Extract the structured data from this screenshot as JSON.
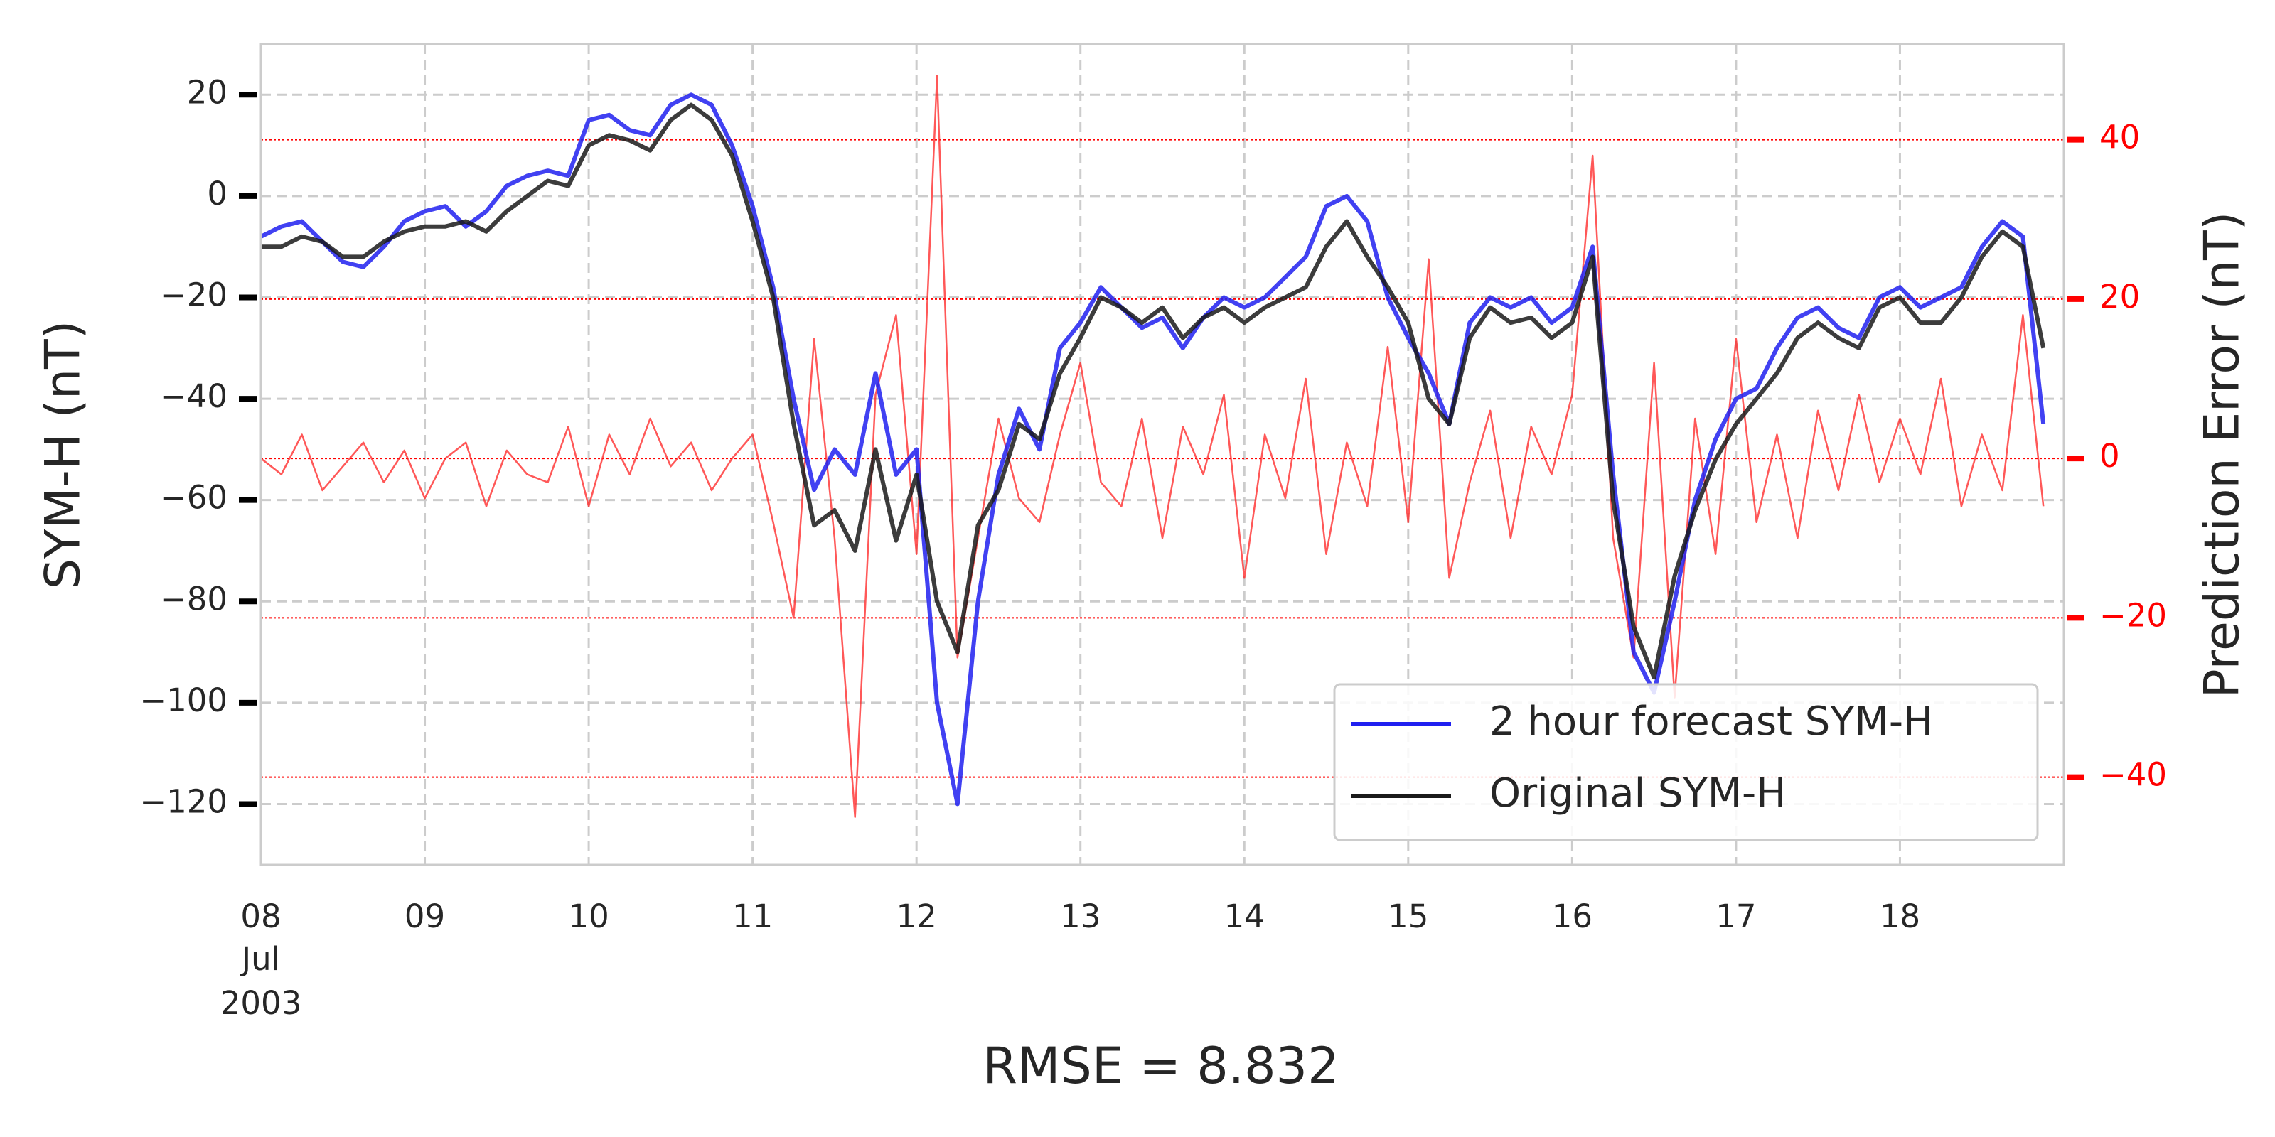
{
  "chart_data": {
    "type": "line",
    "xlabel": "RMSE = 8.832",
    "ylabel": "SYM-H (nT)",
    "y2label": "Prediction Error (nT)",
    "x": [
      8,
      8.125,
      8.25,
      8.375,
      8.5,
      8.625,
      8.75,
      8.875,
      9,
      9.125,
      9.25,
      9.375,
      9.5,
      9.625,
      9.75,
      9.875,
      10,
      10.125,
      10.25,
      10.375,
      10.5,
      10.625,
      10.75,
      10.875,
      11,
      11.125,
      11.25,
      11.375,
      11.5,
      11.625,
      11.75,
      11.875,
      12,
      12.125,
      12.25,
      12.375,
      12.5,
      12.625,
      12.75,
      12.875,
      13,
      13.125,
      13.25,
      13.375,
      13.5,
      13.625,
      13.75,
      13.875,
      14,
      14.125,
      14.25,
      14.375,
      14.5,
      14.625,
      14.75,
      14.875,
      15,
      15.125,
      15.25,
      15.375,
      15.5,
      15.625,
      15.75,
      15.875,
      16,
      16.125,
      16.25,
      16.375,
      16.5,
      16.625,
      16.75,
      16.875,
      17,
      17.125,
      17.25,
      17.375,
      17.5,
      17.625,
      17.75,
      17.875,
      18,
      18.125,
      18.25,
      18.375,
      18.5,
      18.625,
      18.75,
      18.875
    ],
    "series": [
      {
        "name": "2 hour forecast SYM-H",
        "color": "#2020f0",
        "values": [
          -8,
          -6,
          -5,
          -9,
          -13,
          -14,
          -10,
          -5,
          -3,
          -2,
          -6,
          -3,
          2,
          4,
          5,
          4,
          15,
          16,
          13,
          12,
          18,
          20,
          18,
          10,
          -2,
          -18,
          -40,
          -58,
          -50,
          -55,
          -35,
          -55,
          -50,
          -100,
          -120,
          -80,
          -55,
          -42,
          -50,
          -30,
          -25,
          -18,
          -22,
          -26,
          -24,
          -30,
          -24,
          -20,
          -22,
          -20,
          -16,
          -12,
          -2,
          0,
          -5,
          -20,
          -28,
          -35,
          -45,
          -25,
          -20,
          -22,
          -20,
          -25,
          -22,
          -10,
          -55,
          -90,
          -98,
          -80,
          -60,
          -48,
          -40,
          -38,
          -30,
          -24,
          -22,
          -26,
          -28,
          -20,
          -18,
          -22,
          -20,
          -18,
          -10,
          -5,
          -8,
          -45
        ]
      },
      {
        "name": "Original SYM-H",
        "color": "#1a1a1a",
        "values": [
          -10,
          -10,
          -8,
          -9,
          -12,
          -12,
          -9,
          -7,
          -6,
          -6,
          -5,
          -7,
          -3,
          0,
          3,
          2,
          10,
          12,
          11,
          9,
          15,
          18,
          15,
          8,
          -5,
          -20,
          -45,
          -65,
          -62,
          -70,
          -50,
          -68,
          -55,
          -80,
          -90,
          -65,
          -58,
          -45,
          -48,
          -35,
          -28,
          -20,
          -22,
          -25,
          -22,
          -28,
          -24,
          -22,
          -25,
          -22,
          -20,
          -18,
          -10,
          -5,
          -12,
          -18,
          -25,
          -40,
          -45,
          -28,
          -22,
          -25,
          -24,
          -28,
          -25,
          -12,
          -60,
          -85,
          -95,
          -75,
          -62,
          -52,
          -45,
          -40,
          -35,
          -28,
          -25,
          -28,
          -30,
          -22,
          -20,
          -25,
          -25,
          -20,
          -12,
          -7,
          -10,
          -30
        ]
      },
      {
        "color": "#ff2020",
        "axis": "y2",
        "values": [
          0,
          -2,
          3,
          -4,
          -1,
          2,
          -3,
          1,
          -5,
          0,
          2,
          -6,
          1,
          -2,
          -3,
          4,
          -6,
          3,
          -2,
          5,
          -1,
          2,
          -4,
          0,
          3,
          -8,
          -20,
          15,
          -10,
          -45,
          8,
          18,
          -12,
          48,
          -25,
          -10,
          5,
          -5,
          -8,
          3,
          12,
          -3,
          -6,
          5,
          -10,
          4,
          -2,
          8,
          -15,
          3,
          -5,
          10,
          -12,
          2,
          -6,
          14,
          -8,
          25,
          -15,
          -3,
          6,
          -10,
          4,
          -2,
          8,
          38,
          -10,
          -25,
          12,
          -30,
          5,
          -12,
          15,
          -8,
          3,
          -10,
          6,
          -4,
          8,
          -3,
          5,
          -2,
          10,
          -6,
          3,
          -4,
          18,
          -6
        ]
      }
    ],
    "xlim": [
      8,
      19
    ],
    "xticks": [
      {
        "value": 8,
        "label": "08"
      },
      {
        "value": 9,
        "label": "09"
      },
      {
        "value": 10,
        "label": "10"
      },
      {
        "value": 11,
        "label": "11"
      },
      {
        "value": 12,
        "label": "12"
      },
      {
        "value": 13,
        "label": "13"
      },
      {
        "value": 14,
        "label": "14"
      },
      {
        "value": 15,
        "label": "15"
      },
      {
        "value": 16,
        "label": "16"
      },
      {
        "value": 17,
        "label": "17"
      },
      {
        "value": 18,
        "label": "18"
      }
    ],
    "x_date_label": [
      "Jul",
      "2003"
    ],
    "ylim": [
      -132,
      30
    ],
    "yticks": [
      20,
      0,
      {
        "value": -20,
        "label": "−20"
      },
      {
        "value": -40,
        "label": "−40"
      },
      {
        "value": -60,
        "label": "−60"
      },
      {
        "value": -80,
        "label": "−80"
      },
      {
        "value": -100,
        "label": "−100"
      },
      {
        "value": -120,
        "label": "−120"
      }
    ],
    "y2lim": [
      -51,
      52
    ],
    "y2ticks": [
      40,
      20,
      0,
      {
        "value": -20,
        "label": "−20"
      },
      {
        "value": -40,
        "label": "−40"
      }
    ],
    "y2color": "#ff0000",
    "grid": true,
    "legend": "lower right"
  }
}
